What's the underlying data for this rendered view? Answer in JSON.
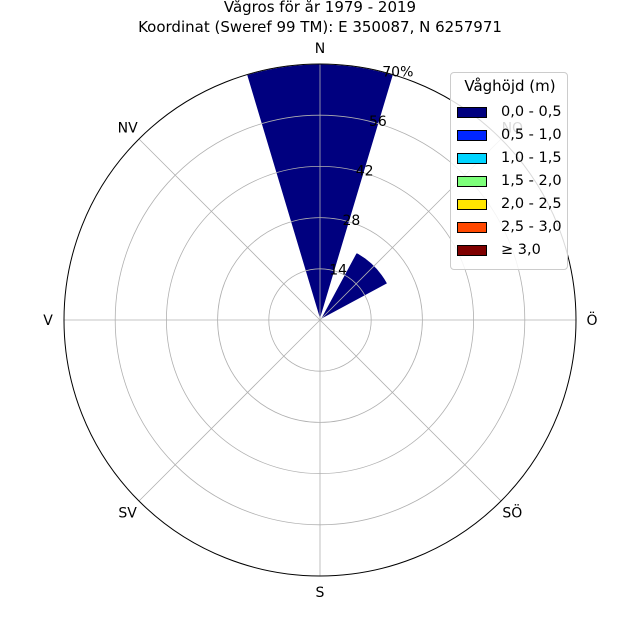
{
  "chart_data": {
    "type": "windrose",
    "title": "Vågros för år 1979 - 2019",
    "subtitle": "Koordinat (Sweref 99 TM): E 350087, N 6257971",
    "directions": [
      "N",
      "NO",
      "Ö",
      "SÖ",
      "S",
      "SV",
      "V",
      "NV"
    ],
    "radial_ticks": [
      "14",
      "28",
      "42",
      "56",
      "70%"
    ],
    "radial_max": 70,
    "grid": true,
    "legend": {
      "title": "Våghöjd (m)",
      "placement": "top-right",
      "items": [
        {
          "label": "0,0 - 0,5",
          "color": "#00007f"
        },
        {
          "label": "0,5 - 1,0",
          "color": "#0026ff"
        },
        {
          "label": "1,0 - 1,5",
          "color": "#00d4ff"
        },
        {
          "label": "1,5 - 2,0",
          "color": "#7dff7a"
        },
        {
          "label": "2,0 - 2,5",
          "color": "#ffe500"
        },
        {
          "label": "2,5 - 3,0",
          "color": "#ff4800"
        },
        {
          "label": "≥ 3,0",
          "color": "#7f0000"
        }
      ]
    },
    "series": [
      {
        "name": "0,0 - 0,5",
        "values": [
          70,
          21,
          0,
          0,
          0,
          0,
          0,
          0
        ]
      },
      {
        "name": "0,5 - 1,0",
        "values": [
          0,
          0,
          0,
          0,
          0,
          0,
          0,
          0
        ]
      },
      {
        "name": "1,0 - 1,5",
        "values": [
          0,
          0,
          0,
          0,
          0,
          0,
          0,
          0
        ]
      },
      {
        "name": "1,5 - 2,0",
        "values": [
          0,
          0,
          0,
          0,
          0,
          0,
          0,
          0
        ]
      },
      {
        "name": "2,0 - 2,5",
        "values": [
          0,
          0,
          0,
          0,
          0,
          0,
          0,
          0
        ]
      },
      {
        "name": "2,5 - 3,0",
        "values": [
          0,
          0,
          0,
          0,
          0,
          0,
          0,
          0
        ]
      },
      {
        "name": "≥ 3,0",
        "values": [
          0,
          0,
          0,
          0,
          0,
          0,
          0,
          0
        ]
      }
    ]
  }
}
